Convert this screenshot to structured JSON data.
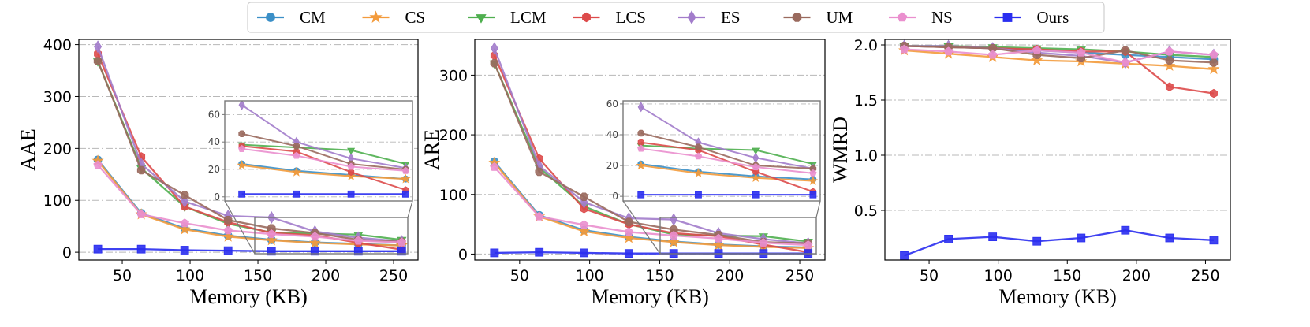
{
  "legend": {
    "entries": [
      {
        "name": "CM",
        "color": "#3b8fc7",
        "marker": "circle"
      },
      {
        "name": "CS",
        "color": "#f39b3c",
        "marker": "star"
      },
      {
        "name": "LCM",
        "color": "#4faf4f",
        "marker": "triangle-down"
      },
      {
        "name": "LCS",
        "color": "#dd4b4b",
        "marker": "hexagon"
      },
      {
        "name": "ES",
        "color": "#a27ccb",
        "marker": "diamond"
      },
      {
        "name": "UM",
        "color": "#9a6a5e",
        "marker": "octagon"
      },
      {
        "name": "NS",
        "color": "#ea8fce",
        "marker": "pentagon"
      },
      {
        "name": "Ours",
        "color": "#2a2ef0",
        "marker": "square"
      }
    ]
  },
  "chart_data": [
    {
      "type": "line",
      "title": "",
      "xlabel": "Memory (KB)",
      "ylabel": "AAE",
      "xlim": [
        18,
        268
      ],
      "ylim": [
        -15,
        410
      ],
      "xticks": [
        50,
        100,
        150,
        200,
        250
      ],
      "yticks": [
        0,
        100,
        200,
        300,
        400
      ],
      "x": [
        32,
        64,
        96,
        128,
        160,
        192,
        224,
        256
      ],
      "series": [
        {
          "name": "CM",
          "values": [
            178,
            75,
            46,
            32,
            24,
            19,
            16,
            13
          ]
        },
        {
          "name": "CS",
          "values": [
            176,
            73,
            44,
            30,
            23,
            18,
            15,
            13
          ]
        },
        {
          "name": "LCM",
          "values": [
            368,
            162,
            88,
            55,
            38,
            36,
            34,
            24
          ]
        },
        {
          "name": "LCS",
          "values": [
            382,
            184,
            88,
            58,
            37,
            33,
            18,
            5
          ]
        },
        {
          "name": "ES",
          "values": [
            396,
            170,
            98,
            70,
            67,
            40,
            28,
            21
          ]
        },
        {
          "name": "UM",
          "values": [
            368,
            158,
            110,
            62,
            46,
            37,
            24,
            20
          ]
        },
        {
          "name": "NS",
          "values": [
            168,
            73,
            56,
            42,
            35,
            30,
            22,
            19
          ]
        },
        {
          "name": "Ours",
          "values": [
            6,
            6,
            4,
            3,
            2,
            2,
            2,
            2
          ]
        }
      ],
      "inset": {
        "xlim": [
          150,
          260
        ],
        "ylim": [
          -3,
          70
        ],
        "yticks": [
          0,
          20,
          40,
          60
        ],
        "ytick_labels": [
          "0",
          "20",
          "40",
          "60"
        ]
      }
    },
    {
      "type": "line",
      "title": "",
      "xlabel": "Memory (KB)",
      "ylabel": "ARE",
      "xlim": [
        18,
        268
      ],
      "ylim": [
        -10,
        360
      ],
      "xticks": [
        50,
        100,
        150,
        200,
        250
      ],
      "yticks": [
        0,
        100,
        200,
        300
      ],
      "x": [
        32,
        64,
        96,
        128,
        160,
        192,
        224,
        256
      ],
      "series": [
        {
          "name": "CM",
          "values": [
            155,
            65,
            40,
            29,
            21,
            16,
            13,
            11
          ]
        },
        {
          "name": "CS",
          "values": [
            153,
            63,
            38,
            27,
            20,
            15,
            12,
            10
          ]
        },
        {
          "name": "LCM",
          "values": [
            320,
            145,
            80,
            50,
            33,
            31,
            30,
            21
          ]
        },
        {
          "name": "LCS",
          "values": [
            333,
            160,
            76,
            50,
            35,
            30,
            16,
            3
          ]
        },
        {
          "name": "ES",
          "values": [
            345,
            148,
            87,
            60,
            58,
            35,
            25,
            18
          ]
        },
        {
          "name": "UM",
          "values": [
            320,
            138,
            96,
            54,
            41,
            32,
            20,
            18
          ]
        },
        {
          "name": "NS",
          "values": [
            146,
            63,
            49,
            37,
            31,
            26,
            19,
            15
          ]
        },
        {
          "name": "Ours",
          "values": [
            2,
            3,
            2,
            1,
            1,
            1,
            1,
            1
          ]
        }
      ],
      "inset": {
        "xlim": [
          150,
          260
        ],
        "ylim": [
          -3,
          62
        ],
        "yticks": [
          0,
          20,
          40,
          60
        ],
        "ytick_labels": [
          "0",
          "20",
          "40",
          "60"
        ]
      }
    },
    {
      "type": "line",
      "title": "",
      "xlabel": "Memory (KB)",
      "ylabel": "WMRD",
      "xlim": [
        18,
        268
      ],
      "ylim": [
        0.05,
        2.05
      ],
      "xticks": [
        50,
        100,
        150,
        200,
        250
      ],
      "yticks": [
        0.5,
        1.0,
        1.5,
        2.0
      ],
      "ytick_labels": [
        "0.5",
        "1.0",
        "1.5",
        "2.0"
      ],
      "x": [
        32,
        64,
        96,
        128,
        160,
        192,
        224,
        256
      ],
      "series": [
        {
          "name": "CM",
          "values": [
            1.99,
            1.98,
            1.97,
            1.95,
            1.93,
            1.91,
            1.89,
            1.87
          ]
        },
        {
          "name": "CS",
          "values": [
            1.95,
            1.92,
            1.89,
            1.86,
            1.85,
            1.83,
            1.81,
            1.78
          ]
        },
        {
          "name": "LCM",
          "values": [
            1.99,
            1.99,
            1.98,
            1.97,
            1.96,
            1.94,
            1.91,
            1.89
          ]
        },
        {
          "name": "LCS",
          "values": [
            1.99,
            1.98,
            1.97,
            1.96,
            1.94,
            1.94,
            1.62,
            1.56
          ]
        },
        {
          "name": "ES",
          "values": [
            1.99,
            1.99,
            1.97,
            1.93,
            1.9,
            1.84,
            1.94,
            1.91
          ]
        },
        {
          "name": "UM",
          "values": [
            1.99,
            1.98,
            1.97,
            1.91,
            1.88,
            1.95,
            1.86,
            1.84
          ]
        },
        {
          "name": "NS",
          "values": [
            1.96,
            1.94,
            1.91,
            1.95,
            1.93,
            1.84,
            1.94,
            1.91
          ]
        },
        {
          "name": "Ours",
          "values": [
            0.09,
            0.24,
            0.26,
            0.22,
            0.25,
            0.32,
            0.25,
            0.23
          ]
        }
      ]
    }
  ]
}
